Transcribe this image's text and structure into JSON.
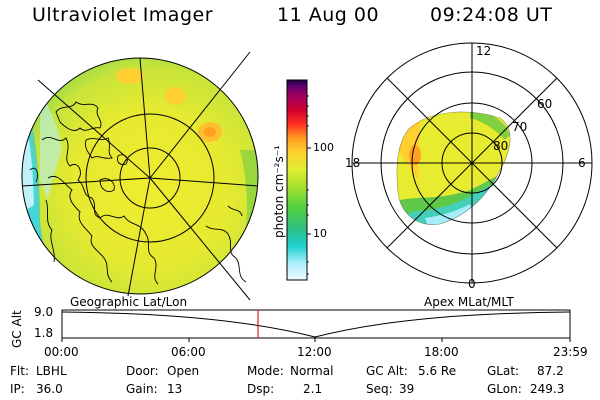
{
  "header": {
    "instrument": "Ultraviolet Imager",
    "date": "11 Aug 00",
    "time": "09:24:08 UT"
  },
  "left_panel": {
    "label": "Geographic Lat/Lon"
  },
  "right_panel": {
    "label": "Apex MLat/MLT",
    "mlt_labels": {
      "top": "12",
      "left": "18",
      "right": "6",
      "bottom": "0"
    },
    "mlat_labels": [
      "60",
      "70",
      "80"
    ]
  },
  "colorbar": {
    "unit_label": "photon cm⁻²s⁻¹",
    "tick_labels": [
      "100",
      "10"
    ],
    "colors": [
      "#f0f8ff",
      "#b0f0ff",
      "#20d0d0",
      "#30c080",
      "#50d040",
      "#a0e030",
      "#e0ee30",
      "#ffd030",
      "#ff9a20",
      "#ff3020",
      "#d00030",
      "#a00060",
      "#600070",
      "#200040"
    ]
  },
  "altitude_strip": {
    "ylabel": "GC Alt",
    "ytick_top": "9.0",
    "ytick_bottom": "1.8",
    "x_ticks": [
      "00:00",
      "06:00",
      "12:00",
      "18:00",
      "23:59"
    ],
    "current_time_marker_color": "#d02020"
  },
  "info": {
    "filter_label": "Flt:",
    "filter_value": "LBHL",
    "ip_label": "IP:",
    "ip_value": "36.0",
    "door_label": "Door:",
    "door_value": "Open",
    "gain_label": "Gain:",
    "gain_value": "13",
    "mode_label": "Mode:",
    "mode_value": "Normal",
    "dsp_label": "Dsp:",
    "dsp_value": "2.1",
    "gcalt_label": "GC Alt:",
    "gcalt_value": "5.6 Re",
    "seq_label": "Seq:",
    "seq_value": "39",
    "glat_label": "GLat:",
    "glat_value": "87.2",
    "glon_label": "GLon:",
    "glon_value": "249.3"
  }
}
